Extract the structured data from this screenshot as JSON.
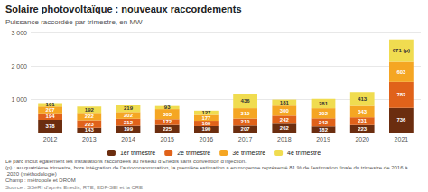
{
  "chart_data": {
    "type": "bar",
    "title": "Solaire photovoltaïque : nouveaux raccordements",
    "subtitle": "Puissance raccordée par trimestre, en MW",
    "categories": [
      "2012",
      "2013",
      "2014",
      "2015",
      "2016",
      "2017",
      "2018",
      "2019",
      "2020",
      "2021"
    ],
    "series": [
      {
        "name": "1er trimestre",
        "color": "#6b2d0f",
        "values": [
          378,
          143,
          199,
          225,
          190,
          207,
          262,
          182,
          223,
          736
        ]
      },
      {
        "name": "2e trimestre",
        "color": "#e0621a",
        "values": [
          194,
          223,
          212,
          172,
          160,
          210,
          242,
          242,
          231,
          782
        ]
      },
      {
        "name": "3e trimestre",
        "color": "#f5a623",
        "values": [
          207,
          222,
          202,
          303,
          177,
          310,
          300,
          302,
          343,
          603
        ]
      },
      {
        "name": "4e trimestre",
        "color": "#f0dc50",
        "values": [
          101,
          192,
          219,
          93,
          127,
          436,
          181,
          281,
          413,
          671
        ],
        "value_labels": [
          "101",
          "192",
          "219",
          "93",
          "127",
          "436",
          "181",
          "281",
          "413",
          "671 (p)"
        ]
      }
    ],
    "stacked": true,
    "data_labels": true,
    "ylim": [
      0,
      3000
    ],
    "yticks": [
      {
        "value": 1000,
        "label": "1 000"
      },
      {
        "value": 2000,
        "label": "2 000"
      },
      {
        "value": 3000,
        "label": "3 000"
      }
    ],
    "grid": true,
    "legend": "bottom",
    "notes": [
      "Le parc inclut également les installations raccordées au réseau d'Enedis sans convention d'injection.",
      "(p) : au quatrième trimestre, hors intégration de l'autoconsommation, la première estimation a en moyenne représenté 81 % de l'estimation finale du trimestre de 2016 à 2020 (méthodologie)",
      "Champ : métropole et DROM"
    ],
    "source": "Source : SSéRI d'après Enedis, RTE, EDF-SEI et la CRE"
  }
}
